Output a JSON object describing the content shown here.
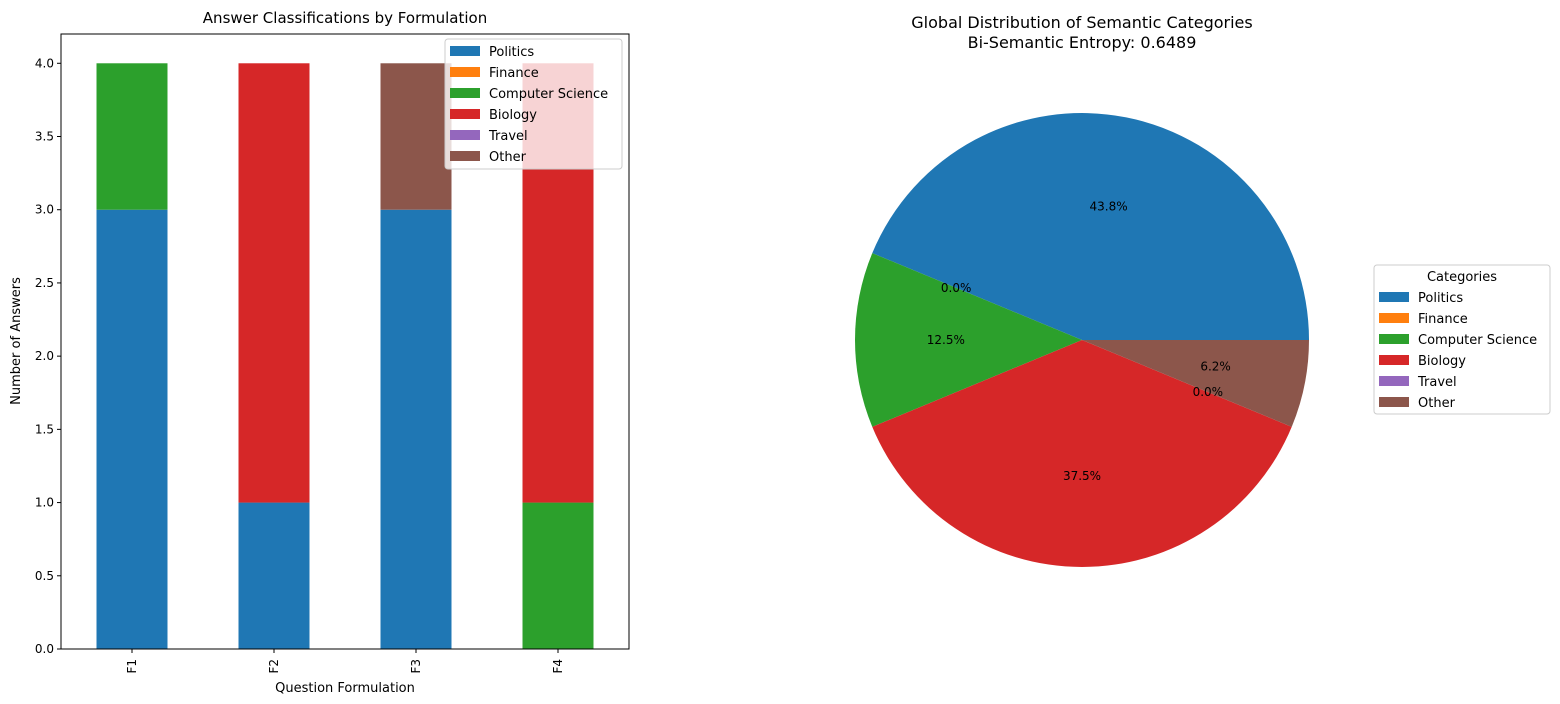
{
  "chart_data": [
    {
      "type": "bar",
      "stacked": true,
      "title": "Answer Classifications by Formulation",
      "xlabel": "Question Formulation",
      "ylabel": "Number of Answers",
      "categories": [
        "F1",
        "F2",
        "F3",
        "F4"
      ],
      "ylim": [
        0,
        4.2
      ],
      "yticks": [
        0.0,
        0.5,
        1.0,
        1.5,
        2.0,
        2.5,
        3.0,
        3.5,
        4.0
      ],
      "ytick_labels": [
        "0.0",
        "0.5",
        "1.0",
        "1.5",
        "2.0",
        "2.5",
        "3.0",
        "3.5",
        "4.0"
      ],
      "grid": false,
      "legend_position": "top-right",
      "series": [
        {
          "name": "Politics",
          "color": "#1f77b4",
          "values": [
            3,
            1,
            3,
            0
          ]
        },
        {
          "name": "Finance",
          "color": "#ff7f0e",
          "values": [
            0,
            0,
            0,
            0
          ]
        },
        {
          "name": "Computer Science",
          "color": "#2ca02c",
          "values": [
            1,
            0,
            0,
            1
          ]
        },
        {
          "name": "Biology",
          "color": "#d62728",
          "values": [
            0,
            3,
            0,
            3
          ]
        },
        {
          "name": "Travel",
          "color": "#9467bd",
          "values": [
            0,
            0,
            0,
            0
          ]
        },
        {
          "name": "Other",
          "color": "#8c564b",
          "values": [
            0,
            0,
            1,
            0
          ]
        }
      ]
    },
    {
      "type": "pie",
      "title": "Global Distribution of Semantic Categories",
      "subtitle": "Bi-Semantic Entropy: 0.6489",
      "legend_title": "Categories",
      "legend_position": "right",
      "slices": [
        {
          "label": "Politics",
          "value": 7,
          "pct_label": "43.8%",
          "color": "#1f77b4"
        },
        {
          "label": "Finance",
          "value": 0,
          "pct_label": "0.0%",
          "color": "#ff7f0e"
        },
        {
          "label": "Computer Science",
          "value": 2,
          "pct_label": "12.5%",
          "color": "#2ca02c"
        },
        {
          "label": "Biology",
          "value": 6,
          "pct_label": "37.5%",
          "color": "#d62728"
        },
        {
          "label": "Travel",
          "value": 0,
          "pct_label": "0.0%",
          "color": "#9467bd"
        },
        {
          "label": "Other",
          "value": 1,
          "pct_label": "6.2%",
          "color": "#8c564b"
        }
      ]
    }
  ]
}
